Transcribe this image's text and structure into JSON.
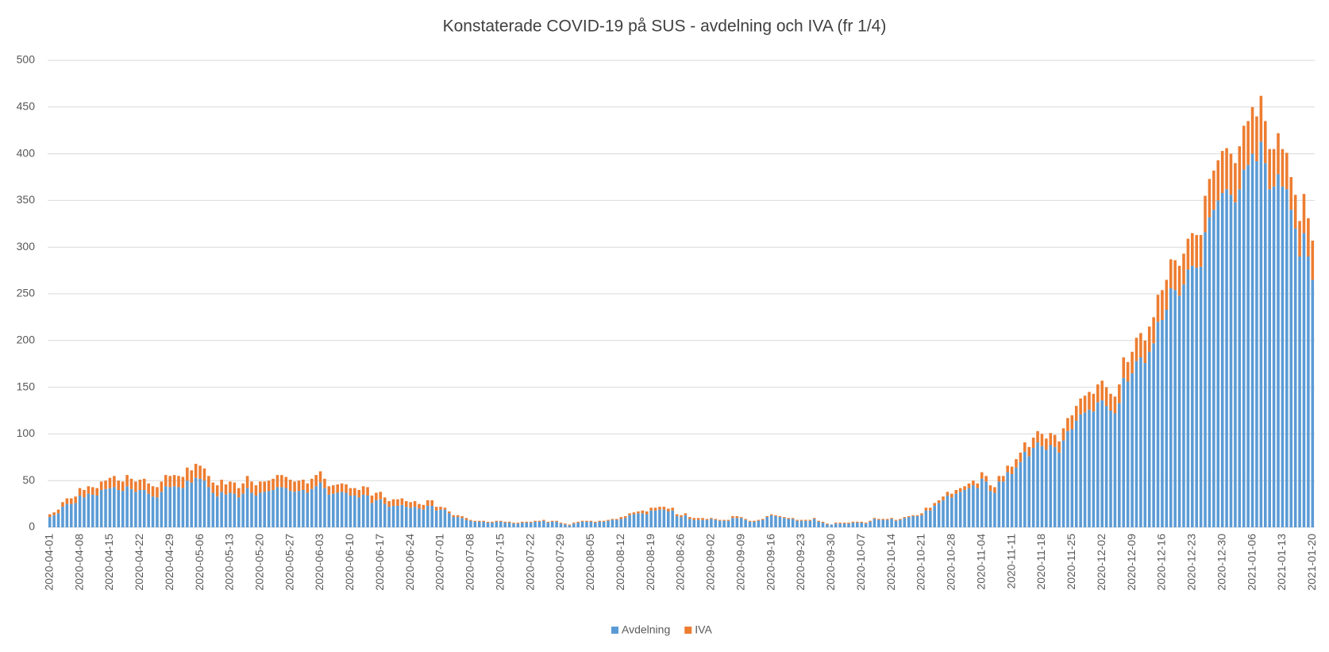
{
  "chart_data": {
    "type": "stacked_bar",
    "title": "Konstaterade COVID-19 på SUS - avdelning och IVA (fr 1/4)",
    "categories": [
      "2020-04-01",
      null,
      null,
      null,
      null,
      null,
      null,
      "2020-04-08",
      null,
      null,
      null,
      null,
      null,
      null,
      "2020-04-15",
      null,
      null,
      null,
      null,
      null,
      null,
      "2020-04-22",
      null,
      null,
      null,
      null,
      null,
      null,
      "2020-04-29",
      null,
      null,
      null,
      null,
      null,
      null,
      "2020-05-06",
      null,
      null,
      null,
      null,
      null,
      null,
      "2020-05-13",
      null,
      null,
      null,
      null,
      null,
      null,
      "2020-05-20",
      null,
      null,
      null,
      null,
      null,
      null,
      "2020-05-27",
      null,
      null,
      null,
      null,
      null,
      null,
      "2020-06-03",
      null,
      null,
      null,
      null,
      null,
      null,
      "2020-06-10",
      null,
      null,
      null,
      null,
      null,
      null,
      "2020-06-17",
      null,
      null,
      null,
      null,
      null,
      null,
      "2020-06-24",
      null,
      null,
      null,
      null,
      null,
      null,
      "2020-07-01",
      null,
      null,
      null,
      null,
      null,
      null,
      "2020-07-08",
      null,
      null,
      null,
      null,
      null,
      null,
      "2020-07-15",
      null,
      null,
      null,
      null,
      null,
      null,
      "2020-07-22",
      null,
      null,
      null,
      null,
      null,
      null,
      "2020-07-29",
      null,
      null,
      null,
      null,
      null,
      null,
      "2020-08-05",
      null,
      null,
      null,
      null,
      null,
      null,
      "2020-08-12",
      null,
      null,
      null,
      null,
      null,
      null,
      "2020-08-19",
      null,
      null,
      null,
      null,
      null,
      null,
      "2020-08-26",
      null,
      null,
      null,
      null,
      null,
      null,
      "2020-09-02",
      null,
      null,
      null,
      null,
      null,
      null,
      "2020-09-09",
      null,
      null,
      null,
      null,
      null,
      null,
      "2020-09-16",
      null,
      null,
      null,
      null,
      null,
      null,
      "2020-09-23",
      null,
      null,
      null,
      null,
      null,
      null,
      "2020-09-30",
      null,
      null,
      null,
      null,
      null,
      null,
      "2020-10-07",
      null,
      null,
      null,
      null,
      null,
      null,
      "2020-10-14",
      null,
      null,
      null,
      null,
      null,
      null,
      "2020-10-21",
      null,
      null,
      null,
      null,
      null,
      null,
      "2020-10-28",
      null,
      null,
      null,
      null,
      null,
      null,
      "2020-11-04",
      null,
      null,
      null,
      null,
      null,
      null,
      "2020-11-11",
      null,
      null,
      null,
      null,
      null,
      null,
      "2020-11-18",
      null,
      null,
      null,
      null,
      null,
      null,
      "2020-11-25",
      null,
      null,
      null,
      null,
      null,
      null,
      "2020-12-02",
      null,
      null,
      null,
      null,
      null,
      null,
      "2020-12-09",
      null,
      null,
      null,
      null,
      null,
      null,
      "2020-12-16",
      null,
      null,
      null,
      null,
      null,
      null,
      "2020-12-23",
      null,
      null,
      null,
      null,
      null,
      null,
      "2020-12-30",
      null,
      null,
      null,
      null,
      null,
      null,
      "2021-01-06",
      null,
      null,
      null,
      null,
      null,
      null,
      "2021-01-13",
      null,
      null,
      null,
      null,
      null,
      null,
      "2021-01-20"
    ],
    "series": [
      {
        "name": "Avdelning",
        "color": "#5b9bd5",
        "values": [
          11,
          13,
          15,
          22,
          25,
          25,
          26,
          34,
          32,
          36,
          35,
          34,
          40,
          41,
          42,
          43,
          40,
          39,
          44,
          41,
          38,
          40,
          40,
          36,
          33,
          32,
          38,
          44,
          43,
          44,
          43,
          42,
          50,
          48,
          53,
          52,
          50,
          43,
          37,
          33,
          38,
          35,
          37,
          36,
          32,
          36,
          42,
          37,
          34,
          37,
          38,
          39,
          40,
          43,
          43,
          42,
          39,
          38,
          39,
          40,
          37,
          41,
          44,
          48,
          42,
          35,
          36,
          37,
          38,
          37,
          34,
          34,
          32,
          35,
          34,
          26,
          29,
          30,
          25,
          22,
          23,
          23,
          24,
          22,
          21,
          22,
          20,
          19,
          23,
          23,
          18,
          19,
          19,
          15,
          11,
          11,
          10,
          8,
          7,
          6,
          6,
          6,
          5,
          5,
          6,
          6,
          5,
          5,
          4,
          4,
          5,
          5,
          5,
          6,
          6,
          7,
          5,
          6,
          6,
          4,
          3,
          2,
          4,
          5,
          6,
          6,
          6,
          5,
          6,
          6,
          7,
          8,
          8,
          9,
          10,
          13,
          14,
          15,
          15,
          14,
          18,
          18,
          19,
          19,
          17,
          18,
          12,
          11,
          13,
          9,
          8,
          8,
          8,
          8,
          9,
          8,
          7,
          7,
          7,
          10,
          10,
          10,
          8,
          6,
          6,
          7,
          8,
          11,
          13,
          12,
          11,
          10,
          9,
          9,
          7,
          7,
          7,
          7,
          9,
          6,
          5,
          3,
          3,
          4,
          4,
          4,
          4,
          5,
          5,
          5,
          4,
          6,
          9,
          8,
          8,
          8,
          9,
          7,
          8,
          10,
          11,
          12,
          12,
          13,
          18,
          18,
          23,
          26,
          29,
          34,
          32,
          36,
          38,
          40,
          42,
          45,
          42,
          52,
          49,
          39,
          37,
          49,
          49,
          59,
          57,
          64,
          70,
          81,
          76,
          85,
          91,
          87,
          83,
          88,
          86,
          80,
          93,
          103,
          105,
          114,
          121,
          123,
          126,
          124,
          134,
          136,
          130,
          125,
          122,
          133,
          160,
          156,
          165,
          178,
          182,
          176,
          188,
          197,
          220,
          222,
          233,
          256,
          254,
          248,
          260,
          276,
          280,
          278,
          279,
          316,
          332,
          340,
          350,
          358,
          362,
          356,
          348,
          362,
          383,
          388,
          400,
          392,
          413,
          390,
          362,
          365,
          378,
          365,
          362,
          340,
          320,
          290,
          315,
          290,
          265
        ]
      },
      {
        "name": "IVA",
        "color": "#ed7d31",
        "values": [
          3,
          3,
          4,
          5,
          6,
          6,
          7,
          8,
          8,
          8,
          8,
          8,
          9,
          9,
          11,
          12,
          10,
          10,
          12,
          11,
          11,
          11,
          12,
          11,
          11,
          11,
          11,
          12,
          12,
          12,
          12,
          12,
          14,
          13,
          15,
          14,
          13,
          12,
          11,
          12,
          13,
          11,
          12,
          12,
          10,
          11,
          13,
          12,
          11,
          12,
          11,
          11,
          12,
          13,
          13,
          12,
          12,
          11,
          11,
          11,
          10,
          11,
          12,
          12,
          10,
          9,
          9,
          9,
          9,
          9,
          8,
          8,
          8,
          9,
          9,
          8,
          8,
          8,
          7,
          6,
          7,
          7,
          7,
          6,
          6,
          6,
          5,
          5,
          6,
          6,
          4,
          3,
          2,
          2,
          2,
          2,
          2,
          2,
          1,
          1,
          1,
          1,
          1,
          1,
          1,
          1,
          1,
          1,
          1,
          1,
          1,
          1,
          1,
          1,
          1,
          1,
          1,
          1,
          1,
          1,
          1,
          1,
          1,
          1,
          1,
          1,
          1,
          1,
          1,
          1,
          1,
          1,
          1,
          2,
          2,
          2,
          2,
          2,
          3,
          3,
          3,
          3,
          3,
          3,
          3,
          3,
          2,
          2,
          2,
          2,
          2,
          2,
          2,
          1,
          1,
          1,
          1,
          1,
          1,
          2,
          2,
          1,
          1,
          1,
          1,
          1,
          1,
          1,
          1,
          1,
          1,
          1,
          1,
          1,
          1,
          1,
          1,
          1,
          1,
          1,
          1,
          1,
          0,
          1,
          1,
          1,
          1,
          1,
          1,
          1,
          1,
          1,
          1,
          1,
          1,
          1,
          1,
          1,
          1,
          1,
          1,
          1,
          1,
          2,
          3,
          3,
          3,
          3,
          4,
          4,
          4,
          4,
          4,
          4,
          5,
          5,
          5,
          7,
          6,
          6,
          6,
          6,
          6,
          7,
          8,
          9,
          10,
          10,
          10,
          11,
          12,
          13,
          12,
          13,
          13,
          12,
          13,
          14,
          15,
          16,
          17,
          18,
          19,
          19,
          19,
          21,
          20,
          18,
          18,
          20,
          22,
          21,
          23,
          25,
          26,
          24,
          27,
          28,
          29,
          32,
          32,
          31,
          32,
          32,
          33,
          33,
          35,
          35,
          34,
          39,
          41,
          42,
          43,
          45,
          44,
          44,
          42,
          46,
          47,
          47,
          50,
          48,
          49,
          45,
          43,
          40,
          44,
          40,
          39,
          35,
          36,
          38,
          42,
          41,
          42
        ]
      }
    ],
    "ylim": [
      0,
      500
    ],
    "yticks": [
      0,
      50,
      100,
      150,
      200,
      250,
      300,
      350,
      400,
      450,
      500
    ],
    "grid": true,
    "legend": "bottom"
  }
}
